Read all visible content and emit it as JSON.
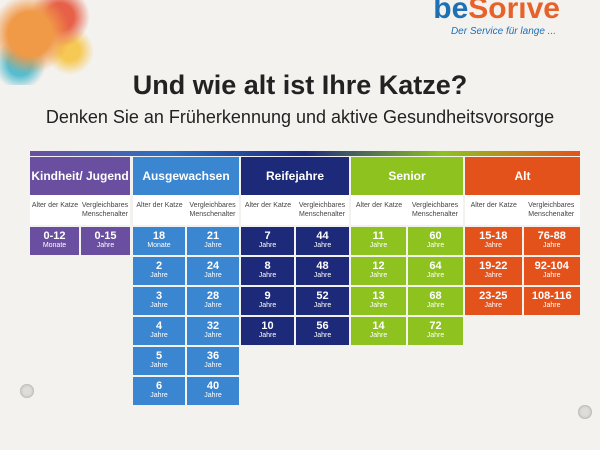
{
  "brand": {
    "name_prefix": "be",
    "name_suffix": "Sorive",
    "tagline": "Der Service für lange ..."
  },
  "title": "Und wie alt ist Ihre Katze?",
  "subtitle": "Denken Sie an Früherkennung und aktive Gesundheitsvorsorge",
  "colors": {
    "kindheit": "#6a4fa0",
    "ausgewachsen": "#3b86d0",
    "reife": "#1d2a7a",
    "senior": "#8dc21f",
    "alt": "#e4521b"
  },
  "sub_labels": {
    "cat": "Alter der Katze",
    "human": "Vergleichbares Menschenalter"
  },
  "groups": [
    {
      "name": "Kindheit/ Jugend",
      "rows": [
        {
          "cat": "0-12",
          "cat_unit": "Monate",
          "human": "0-15",
          "human_unit": "Jahre"
        }
      ]
    },
    {
      "name": "Ausgewachsen",
      "rows": [
        {
          "cat": "18",
          "cat_unit": "Monate",
          "human": "21",
          "human_unit": "Jahre"
        },
        {
          "cat": "2",
          "cat_unit": "Jahre",
          "human": "24",
          "human_unit": "Jahre"
        },
        {
          "cat": "3",
          "cat_unit": "Jahre",
          "human": "28",
          "human_unit": "Jahre"
        },
        {
          "cat": "4",
          "cat_unit": "Jahre",
          "human": "32",
          "human_unit": "Jahre"
        },
        {
          "cat": "5",
          "cat_unit": "Jahre",
          "human": "36",
          "human_unit": "Jahre"
        },
        {
          "cat": "6",
          "cat_unit": "Jahre",
          "human": "40",
          "human_unit": "Jahre"
        }
      ]
    },
    {
      "name": "Reifejahre",
      "rows": [
        {
          "cat": "7",
          "cat_unit": "Jahre",
          "human": "44",
          "human_unit": "Jahre"
        },
        {
          "cat": "8",
          "cat_unit": "Jahre",
          "human": "48",
          "human_unit": "Jahre"
        },
        {
          "cat": "9",
          "cat_unit": "Jahre",
          "human": "52",
          "human_unit": "Jahre"
        },
        {
          "cat": "10",
          "cat_unit": "Jahre",
          "human": "56",
          "human_unit": "Jahre"
        }
      ]
    },
    {
      "name": "Senior",
      "rows": [
        {
          "cat": "11",
          "cat_unit": "Jahre",
          "human": "60",
          "human_unit": "Jahre"
        },
        {
          "cat": "12",
          "cat_unit": "Jahre",
          "human": "64",
          "human_unit": "Jahre"
        },
        {
          "cat": "13",
          "cat_unit": "Jahre",
          "human": "68",
          "human_unit": "Jahre"
        },
        {
          "cat": "14",
          "cat_unit": "Jahre",
          "human": "72",
          "human_unit": "Jahre"
        }
      ]
    },
    {
      "name": "Alt",
      "rows": [
        {
          "cat": "15-18",
          "cat_unit": "Jahre",
          "human": "76-88",
          "human_unit": "Jahre"
        },
        {
          "cat": "19-22",
          "cat_unit": "Jahre",
          "human": "92-104",
          "human_unit": "Jahre"
        },
        {
          "cat": "23-25",
          "cat_unit": "Jahre",
          "human": "108-116",
          "human_unit": "Jahre"
        }
      ]
    }
  ]
}
